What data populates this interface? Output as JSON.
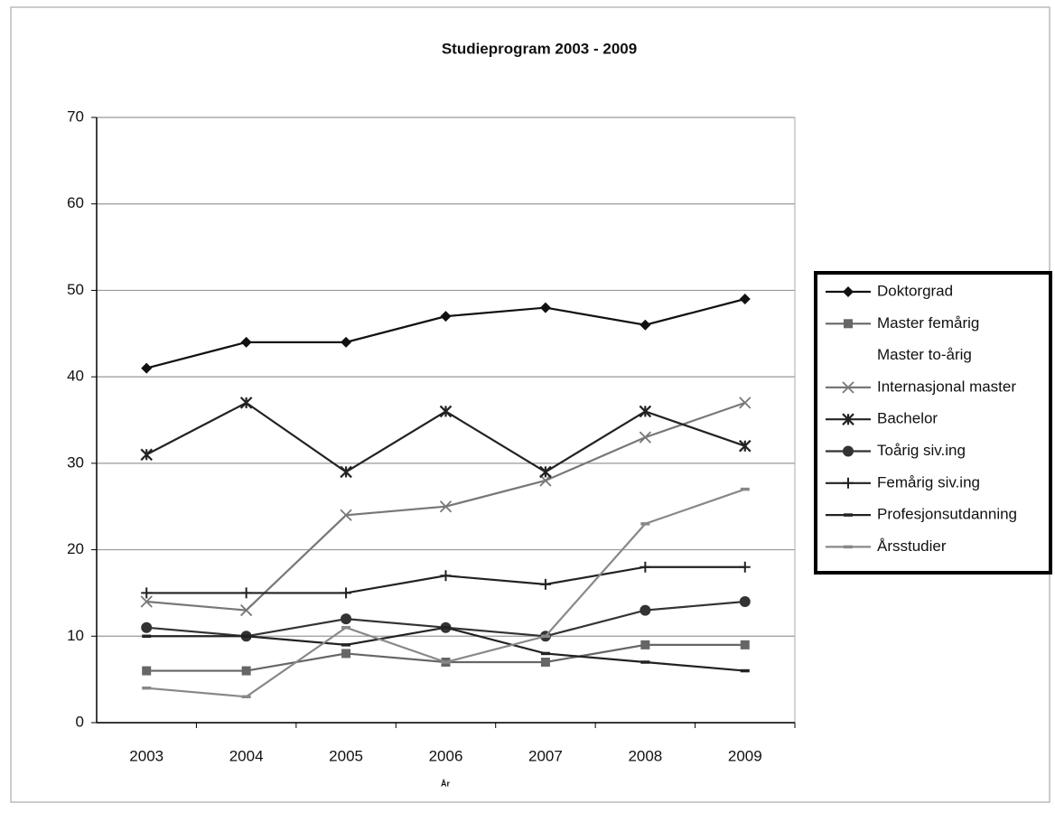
{
  "chart_data": {
    "type": "line",
    "title": "Studieprogram 2003 - 2009",
    "x_label": "År",
    "categories": [
      "2003",
      "2004",
      "2005",
      "2006",
      "2007",
      "2008",
      "2009"
    ],
    "ylim": [
      0,
      70
    ],
    "yticks": [
      0,
      10,
      20,
      30,
      40,
      50,
      60,
      70
    ],
    "grid": true,
    "legend": "right",
    "series": [
      {
        "name": "Doktorgrad",
        "color": "#111111",
        "marker": "diamond",
        "values": [
          41,
          44,
          44,
          47,
          48,
          46,
          49
        ]
      },
      {
        "name": "Master femårig",
        "color": "#666666",
        "marker": "square",
        "values": [
          6,
          6,
          8,
          7,
          7,
          9,
          9
        ]
      },
      {
        "name": "Master to-årig",
        "color": "#ffffff",
        "marker": "none",
        "values": [
          null,
          null,
          null,
          null,
          null,
          null,
          null
        ]
      },
      {
        "name": "Internasjonal master",
        "color": "#777777",
        "marker": "x",
        "values": [
          14,
          13,
          24,
          25,
          28,
          33,
          37
        ]
      },
      {
        "name": "Bachelor",
        "color": "#222222",
        "marker": "star",
        "values": [
          31,
          37,
          29,
          36,
          29,
          36,
          32
        ]
      },
      {
        "name": "Toårig siv.ing",
        "color": "#333333",
        "marker": "circle",
        "values": [
          11,
          10,
          12,
          11,
          10,
          13,
          14
        ]
      },
      {
        "name": "Femårig siv.ing",
        "color": "#222222",
        "marker": "plus",
        "values": [
          15,
          15,
          15,
          17,
          16,
          18,
          18
        ]
      },
      {
        "name": "Profesjonsutdanning",
        "color": "#222222",
        "marker": "dash",
        "values": [
          10,
          10,
          9,
          11,
          8,
          7,
          6
        ]
      },
      {
        "name": "Årsstudier",
        "color": "#888888",
        "marker": "dash",
        "values": [
          4,
          3,
          11,
          7,
          10,
          23,
          27
        ]
      }
    ]
  }
}
